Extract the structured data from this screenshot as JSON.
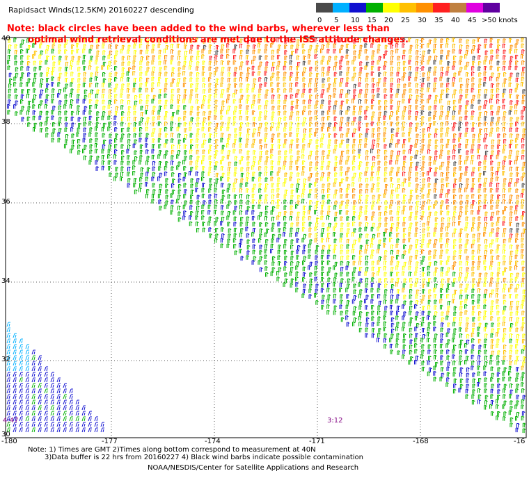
{
  "title": "Rapidsact Winds(12.5KM) 20160227 descending",
  "note_line1": "Note: black circles have been added to the wind barbs, wherever less than",
  "note_line2": "optimal wind retrieval conditions are met due to the ISS attitude changes.",
  "colorbar": {
    "labels": [
      "0",
      "5",
      "10",
      "15",
      "20",
      "25",
      "30",
      "35",
      "40",
      "45",
      ">50 knots"
    ],
    "colors": [
      "#4a4a4a",
      "#00b0ff",
      "#1010d0",
      "#00b000",
      "#ffff00",
      "#ffc000",
      "#ff9000",
      "#ff2020",
      "#c08040",
      "#e000e0",
      "#6000a0"
    ]
  },
  "lat_labels": [
    "40",
    "38",
    "36",
    "34",
    "32",
    "30"
  ],
  "lon_labels": [
    "-180",
    "-177",
    "-174",
    "-171",
    "-168",
    "-16"
  ],
  "pass_times": [
    "4:47",
    "3:12"
  ],
  "footer_line1": "Note: 1) Times are GMT 2)Times along bottom correspond to measurement at 40N",
  "footer_line2": "3)Data buffer is 22 hrs from 20160227 4) Black wind barbs indicate possible contamination",
  "footer_line3": "NOAA/NESDIS/Center for Satellite Applications and Research"
}
